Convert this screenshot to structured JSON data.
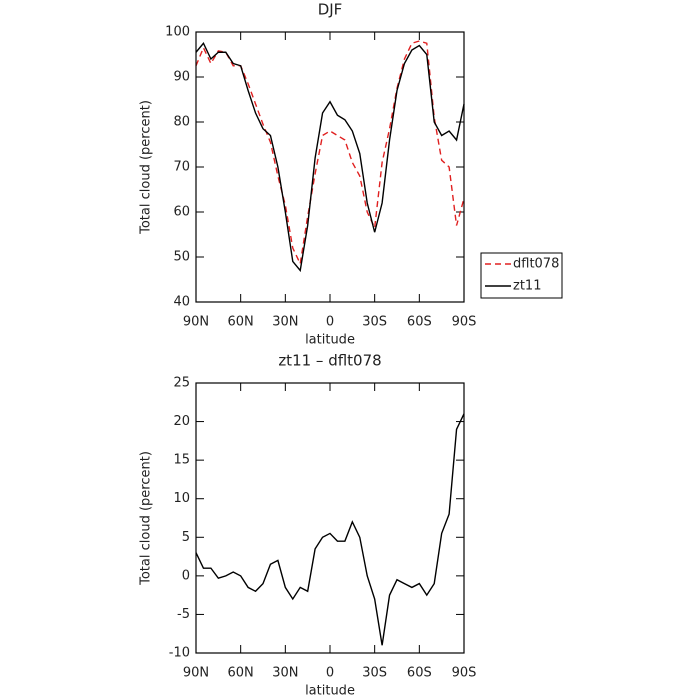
{
  "chart_data": [
    {
      "type": "line",
      "title": "DJF",
      "xlabel": "latitude",
      "ylabel": "Total cloud (percent)",
      "x": [
        90,
        85,
        80,
        75,
        70,
        65,
        60,
        55,
        50,
        45,
        40,
        35,
        30,
        25,
        20,
        15,
        10,
        5,
        0,
        -5,
        -10,
        -15,
        -20,
        -25,
        -30,
        -35,
        -40,
        -45,
        -50,
        -55,
        -60,
        -65,
        -70,
        -75,
        -80,
        -85,
        -90
      ],
      "series": [
        {
          "name": "dflt078",
          "color": "#e02020",
          "style": "dashed",
          "values": [
            92.5,
            96.5,
            93,
            95.8,
            95.5,
            92.5,
            92.5,
            88.5,
            84,
            79.5,
            75.5,
            68,
            61.5,
            52,
            48.5,
            59,
            68.5,
            77,
            78,
            77,
            76,
            71,
            68,
            60,
            56.5,
            71,
            78.5,
            87.5,
            94,
            97.5,
            98,
            97.5,
            81,
            71.5,
            70,
            57,
            63
          ]
        },
        {
          "name": "zt11",
          "color": "#000000",
          "style": "solid",
          "values": [
            95.5,
            97.5,
            94,
            95.5,
            95.5,
            93,
            92.5,
            87,
            82,
            78.5,
            77,
            70,
            60,
            49,
            47,
            57,
            72,
            82,
            84.5,
            81.5,
            80.5,
            78,
            73,
            62,
            55.5,
            62,
            76,
            87,
            93,
            96,
            97,
            95,
            80,
            77,
            78,
            76,
            84
          ]
        }
      ],
      "xlim": [
        90,
        -90
      ],
      "xticks": [
        {
          "value": 90,
          "label": "90N"
        },
        {
          "value": 60,
          "label": "60N"
        },
        {
          "value": 30,
          "label": "30N"
        },
        0,
        {
          "value": -30,
          "label": "30S"
        },
        {
          "value": -60,
          "label": "60S"
        },
        {
          "value": -90,
          "label": "90S"
        }
      ],
      "ylim": [
        40,
        100
      ],
      "yticks": [
        40,
        50,
        60,
        70,
        80,
        90,
        100
      ],
      "legend": "right"
    },
    {
      "type": "line",
      "title": "zt11 – dflt078",
      "xlabel": "latitude",
      "ylabel": "Total cloud (percent)",
      "x": [
        90,
        85,
        80,
        75,
        70,
        65,
        60,
        55,
        50,
        45,
        40,
        35,
        30,
        25,
        20,
        15,
        10,
        5,
        0,
        -5,
        -10,
        -15,
        -20,
        -25,
        -30,
        -35,
        -40,
        -45,
        -50,
        -55,
        -60,
        -65,
        -70,
        -75,
        -80,
        -85,
        -90
      ],
      "values": [
        3,
        1,
        1,
        -0.3,
        0,
        0.5,
        0,
        -1.5,
        -2,
        -1,
        1.5,
        2,
        -1.5,
        -3,
        -1.5,
        -2,
        3.5,
        5,
        5.5,
        4.5,
        4.5,
        7,
        5,
        0,
        -3,
        -9,
        -2.5,
        -0.5,
        -1,
        -1.5,
        -1,
        -2.5,
        -1,
        5.5,
        8,
        19,
        21
      ],
      "color": "#000000",
      "xlim": [
        90,
        -90
      ],
      "xticks": [
        {
          "value": 90,
          "label": "90N"
        },
        {
          "value": 60,
          "label": "60N"
        },
        {
          "value": 30,
          "label": "30N"
        },
        0,
        {
          "value": -30,
          "label": "30S"
        },
        {
          "value": -60,
          "label": "60S"
        },
        {
          "value": -90,
          "label": "90S"
        }
      ],
      "ylim": [
        -10,
        25
      ],
      "yticks": [
        -10,
        -5,
        0,
        5,
        10,
        15,
        20,
        25
      ]
    }
  ]
}
